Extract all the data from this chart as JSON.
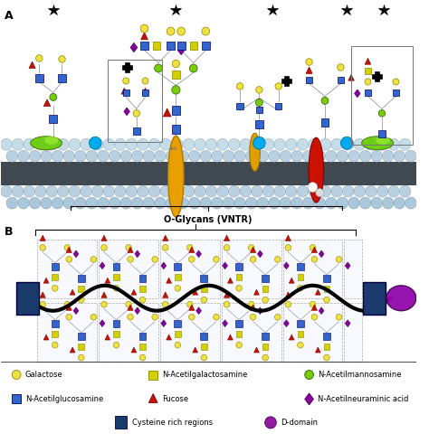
{
  "bg_color": "#ffffff",
  "CY": "#f0e040",
  "SY": "#d4d000",
  "CG": "#7acc00",
  "SB": "#3366cc",
  "TR": "#cc1100",
  "DP": "#880099",
  "CB": "#00aaee",
  "mem_sphere_color": "#c0d8e8",
  "mem_sphere_edge": "#7898a8",
  "mem_dark": "#505860",
  "yellow_prot": "#e8a000",
  "red_prot": "#cc1100",
  "green_blob": "#66bb00",
  "legend_row1": [
    "Galactose",
    "N-Acetilgalactosamine",
    "N-Acetilmannosamine"
  ],
  "legend_row2": [
    "N-Acetilglucosamine",
    "Fucose",
    "N-Acetilneuraminic acid"
  ],
  "legend_row3": [
    "Cysteine rich regions",
    "D-domain"
  ]
}
